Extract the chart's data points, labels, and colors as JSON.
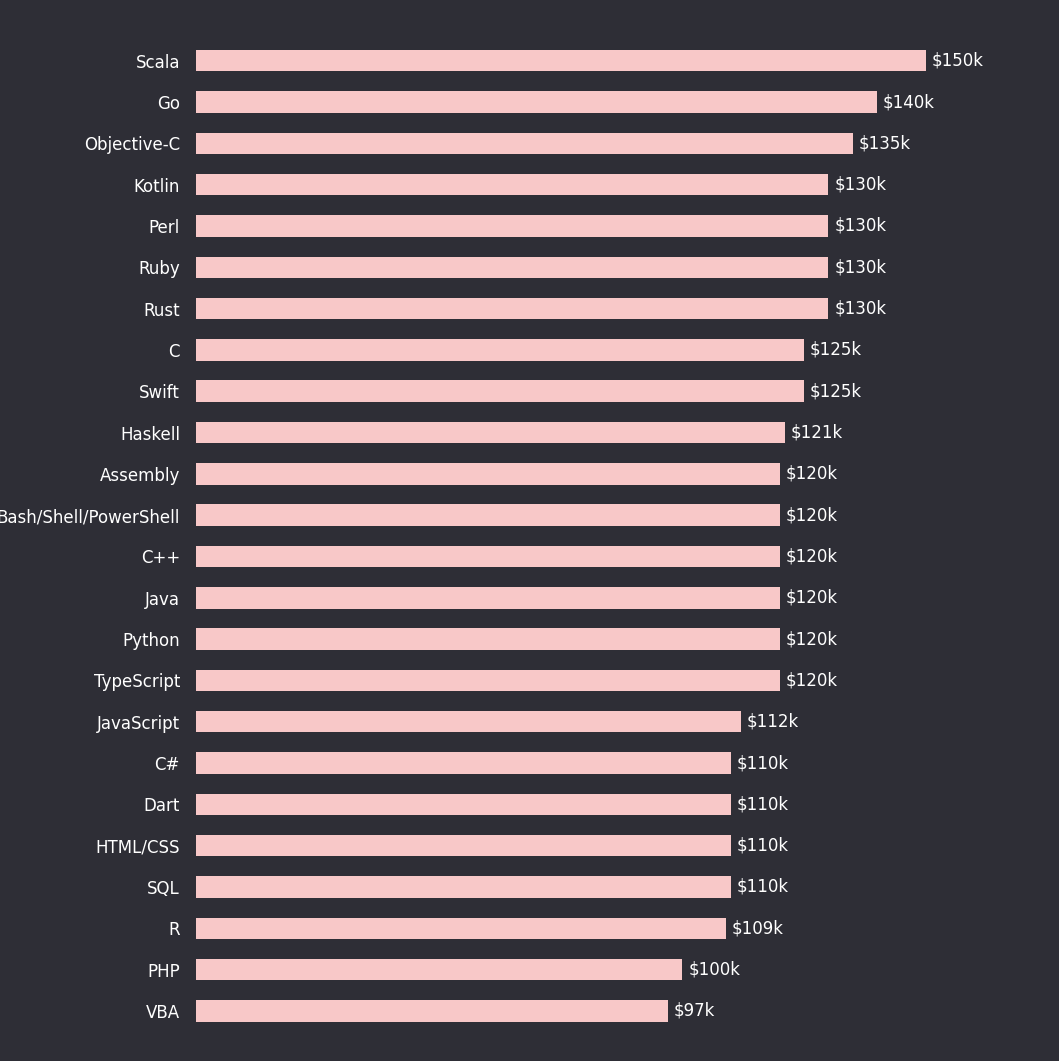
{
  "categories": [
    "Scala",
    "Go",
    "Objective-C",
    "Kotlin",
    "Perl",
    "Ruby",
    "Rust",
    "C",
    "Swift",
    "Haskell",
    "Assembly",
    "Bash/Shell/PowerShell",
    "C++",
    "Java",
    "Python",
    "TypeScript",
    "JavaScript",
    "C#",
    "Dart",
    "HTML/CSS",
    "SQL",
    "R",
    "PHP",
    "VBA"
  ],
  "values": [
    150,
    140,
    135,
    130,
    130,
    130,
    130,
    125,
    125,
    121,
    120,
    120,
    120,
    120,
    120,
    120,
    112,
    110,
    110,
    110,
    110,
    109,
    100,
    97
  ],
  "labels": [
    "$150k",
    "$140k",
    "$135k",
    "$130k",
    "$130k",
    "$130k",
    "$130k",
    "$125k",
    "$125k",
    "$121k",
    "$120k",
    "$120k",
    "$120k",
    "$120k",
    "$120k",
    "$120k",
    "$112k",
    "$110k",
    "$110k",
    "$110k",
    "$110k",
    "$109k",
    "$100k",
    "$97k"
  ],
  "bar_color": "#f8c8c8",
  "background_color": "#2e2e36",
  "text_color": "#ffffff",
  "label_fontsize": 12,
  "value_fontsize": 12,
  "bar_height": 0.52,
  "xlim": [
    0,
    160
  ]
}
